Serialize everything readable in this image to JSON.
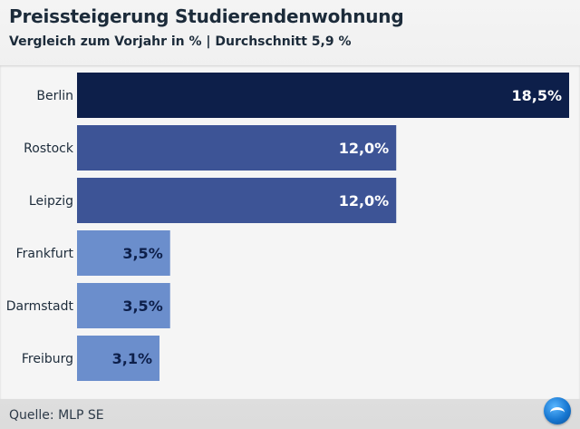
{
  "header": {
    "title": "Preissteigerung Studierendenwohnung",
    "subtitle": "Vergleich zum Vorjahr in % | Durchschnitt 5,9 %"
  },
  "footer": {
    "source": "Quelle: MLP SE"
  },
  "logo": {
    "icon": "broadcaster-logo-icon"
  },
  "colors": {
    "bar_dark": "#0d1f4a",
    "bar_mid": "#3d5496",
    "bar_light": "#6b8ecc",
    "label_dark": "#ffffff",
    "label_light": "#0d1f4a"
  },
  "chart_data": {
    "type": "bar",
    "orientation": "horizontal",
    "title": "Preissteigerung Studierendenwohnung",
    "subtitle": "Vergleich zum Vorjahr in % | Durchschnitt 5,9 %",
    "categories": [
      "Berlin",
      "Rostock",
      "Leipzig",
      "Frankfurt",
      "Darmstadt",
      "Freiburg"
    ],
    "values": [
      18.5,
      12.0,
      12.0,
      3.5,
      3.5,
      3.1
    ],
    "value_labels": [
      "18,5%",
      "12,0%",
      "12,0%",
      "3,5%",
      "3,5%",
      "3,1%"
    ],
    "bar_colors": [
      "#0d1f4a",
      "#3d5496",
      "#3d5496",
      "#6b8ecc",
      "#6b8ecc",
      "#6b8ecc"
    ],
    "xlim": [
      0,
      18.5
    ],
    "grid": false,
    "legend": "none"
  }
}
